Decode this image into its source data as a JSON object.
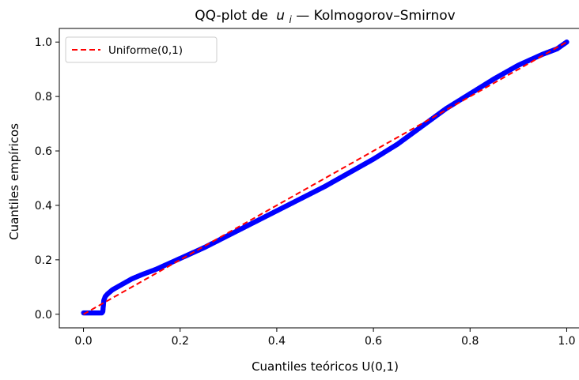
{
  "chart_data": {
    "type": "scatter",
    "title": "QQ-plot de",
    "title_var": "u",
    "title_sub": "i",
    "title_rest": " — Kolmogorov–Smirnov",
    "xlabel": "Cuantiles teóricos U(0,1)",
    "ylabel": "Cuantiles empíricos",
    "xlim": [
      -0.05,
      1.05
    ],
    "ylim": [
      -0.05,
      1.05
    ],
    "xticks": [
      0.0,
      0.2,
      0.4,
      0.6,
      0.8,
      1.0
    ],
    "yticks": [
      0.0,
      0.2,
      0.4,
      0.6,
      0.8,
      1.0
    ],
    "xtick_labels": [
      "0.0",
      "0.2",
      "0.4",
      "0.6",
      "0.8",
      "1.0"
    ],
    "ytick_labels": [
      "0.0",
      "0.2",
      "0.4",
      "0.6",
      "0.8",
      "1.0"
    ],
    "grid": false,
    "legend_position": "top-left",
    "series": [
      {
        "kind": "scatter",
        "color": "#0000ff",
        "x": [
          0.0,
          0.01,
          0.02,
          0.03,
          0.038,
          0.04,
          0.041,
          0.042,
          0.045,
          0.05,
          0.06,
          0.07,
          0.08,
          0.1,
          0.12,
          0.15,
          0.2,
          0.25,
          0.3,
          0.35,
          0.4,
          0.45,
          0.5,
          0.55,
          0.6,
          0.65,
          0.7,
          0.75,
          0.8,
          0.85,
          0.9,
          0.95,
          0.98,
          1.0
        ],
        "y": [
          0.005,
          0.005,
          0.005,
          0.005,
          0.005,
          0.01,
          0.03,
          0.05,
          0.065,
          0.075,
          0.09,
          0.1,
          0.11,
          0.13,
          0.145,
          0.165,
          0.205,
          0.245,
          0.29,
          0.335,
          0.38,
          0.425,
          0.47,
          0.52,
          0.57,
          0.625,
          0.69,
          0.755,
          0.81,
          0.865,
          0.915,
          0.955,
          0.975,
          1.0
        ]
      },
      {
        "kind": "line",
        "name": "Uniforme(0,1)",
        "color": "#ff0000",
        "dashed": true,
        "x": [
          0.0,
          1.0
        ],
        "y": [
          0.0,
          1.0
        ]
      }
    ]
  }
}
